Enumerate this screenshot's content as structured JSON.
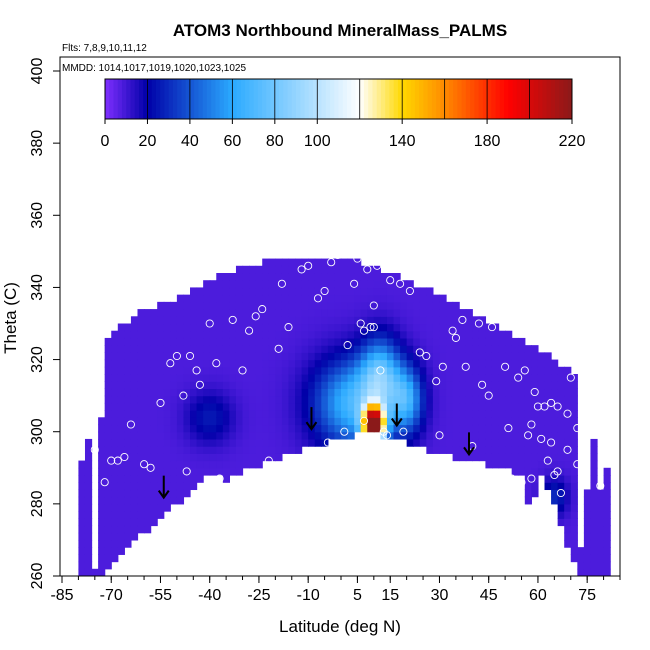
{
  "chart_data": {
    "type": "heatmap",
    "title": "ATOM3 Northbound MineralMass_PALMS",
    "subtitle_flights": "Flts: 7,8,9,10,11,12",
    "subtitle_dates": "MMDD: 1014,1017,1019,1020,1023,1025",
    "xlabel": "Latitude (deg N)",
    "ylabel": "Theta (C)",
    "xlim": [
      -85,
      85
    ],
    "ylim": [
      260,
      400
    ],
    "x_ticks": [
      -85,
      -70,
      -55,
      -40,
      -25,
      -10,
      5,
      15,
      30,
      45,
      60,
      75
    ],
    "y_ticks": [
      260,
      280,
      300,
      320,
      340,
      360,
      380,
      400
    ],
    "colorbar": {
      "range": [
        0,
        220
      ],
      "ticks": [
        0,
        20,
        40,
        60,
        80,
        100,
        140,
        180,
        220
      ],
      "colors": {
        "low": "#7f2fff",
        "mid_low": "#0000a8",
        "mid": "#2aaaff",
        "white": "#ffffff",
        "yellow": "#ffd800",
        "orange": "#ff8a00",
        "red": "#ff0000",
        "high": "#8b1a1a"
      }
    },
    "background_value": 8,
    "envelope": {
      "lower": [
        [
          -72,
          261
        ],
        [
          -65,
          268
        ],
        [
          -55,
          276
        ],
        [
          -46,
          283
        ],
        [
          -40,
          288
        ],
        [
          -35,
          287
        ],
        [
          -25,
          291
        ],
        [
          -15,
          294
        ],
        [
          -5,
          297
        ],
        [
          3,
          299
        ],
        [
          8,
          300
        ],
        [
          18,
          298
        ],
        [
          28,
          294
        ],
        [
          40,
          292
        ],
        [
          50,
          290
        ],
        [
          55,
          288
        ],
        [
          57,
          280
        ],
        [
          58,
          277
        ],
        [
          60,
          289
        ],
        [
          65,
          280
        ],
        [
          68,
          270
        ],
        [
          72,
          261
        ]
      ],
      "upper": [
        [
          -75,
          261
        ],
        [
          -78,
          284
        ],
        [
          -80,
          300
        ],
        [
          -78,
          315
        ],
        [
          -72,
          325
        ],
        [
          -62,
          333
        ],
        [
          -50,
          337
        ],
        [
          -40,
          342
        ],
        [
          -28,
          346
        ],
        [
          -18,
          348
        ],
        [
          -5,
          348
        ],
        [
          5,
          347
        ],
        [
          15,
          344
        ],
        [
          25,
          340
        ],
        [
          35,
          335
        ],
        [
          45,
          330
        ],
        [
          55,
          325
        ],
        [
          65,
          320
        ],
        [
          72,
          315
        ],
        [
          78,
          305
        ],
        [
          80,
          290
        ],
        [
          78,
          278
        ],
        [
          72,
          261
        ]
      ]
    },
    "enhanced_regions": [
      {
        "center": [
          4,
          308
        ],
        "peak": 60,
        "spread": [
          12,
          12
        ]
      },
      {
        "center": [
          10,
          302
        ],
        "peak": 215,
        "spread": [
          3.2,
          5
        ]
      },
      {
        "center": [
          12,
          316
        ],
        "peak": 55,
        "spread": [
          6,
          10
        ]
      },
      {
        "center": [
          20,
          309
        ],
        "peak": 50,
        "spread": [
          5,
          9
        ]
      },
      {
        "center": [
          -40,
          304
        ],
        "peak": 18,
        "spread": [
          7,
          7
        ]
      },
      {
        "center": [
          65,
          282
        ],
        "peak": 22,
        "spread": [
          4,
          5
        ]
      }
    ],
    "flight_points": [
      [
        -74,
        311
      ],
      [
        -75,
        295
      ],
      [
        -72,
        286
      ],
      [
        -70,
        292
      ],
      [
        -68,
        292
      ],
      [
        -66,
        293
      ],
      [
        -64,
        302
      ],
      [
        -60,
        291
      ],
      [
        -58,
        290
      ],
      [
        -55,
        308
      ],
      [
        -52,
        319
      ],
      [
        -50,
        321
      ],
      [
        -48,
        310
      ],
      [
        -47,
        289
      ],
      [
        -46,
        321
      ],
      [
        -44,
        317
      ],
      [
        -43,
        313
      ],
      [
        -40,
        330
      ],
      [
        -38,
        319
      ],
      [
        -37,
        287
      ],
      [
        -33,
        331
      ],
      [
        -30,
        317
      ],
      [
        -28,
        328
      ],
      [
        -26,
        332
      ],
      [
        -24,
        334
      ],
      [
        -22,
        292
      ],
      [
        -19,
        323
      ],
      [
        -18,
        341
      ],
      [
        -16,
        329
      ],
      [
        -12,
        345
      ],
      [
        -10,
        346
      ],
      [
        -7,
        337
      ],
      [
        -5,
        339
      ],
      [
        -4,
        297
      ],
      [
        -3,
        347
      ],
      [
        -1,
        349
      ],
      [
        1,
        300
      ],
      [
        2,
        324
      ],
      [
        4,
        341
      ],
      [
        5,
        348
      ],
      [
        6,
        330
      ],
      [
        7,
        303
      ],
      [
        7,
        328
      ],
      [
        8,
        345
      ],
      [
        9,
        329
      ],
      [
        10,
        329
      ],
      [
        10,
        335
      ],
      [
        11,
        346
      ],
      [
        12,
        317
      ],
      [
        13,
        300
      ],
      [
        14,
        299
      ],
      [
        15,
        342
      ],
      [
        18,
        341
      ],
      [
        19,
        300
      ],
      [
        21,
        339
      ],
      [
        23,
        343
      ],
      [
        24,
        322
      ],
      [
        26,
        321
      ],
      [
        27,
        342
      ],
      [
        29,
        314
      ],
      [
        30,
        299
      ],
      [
        31,
        318
      ],
      [
        34,
        328
      ],
      [
        35,
        326
      ],
      [
        37,
        331
      ],
      [
        38,
        318
      ],
      [
        40,
        296
      ],
      [
        42,
        330
      ],
      [
        43,
        313
      ],
      [
        45,
        310
      ],
      [
        46,
        329
      ],
      [
        48,
        334
      ],
      [
        50,
        318
      ],
      [
        51,
        301
      ],
      [
        52,
        287
      ],
      [
        54,
        315
      ],
      [
        55,
        286
      ],
      [
        56,
        317
      ],
      [
        57,
        299
      ],
      [
        58,
        302
      ],
      [
        58,
        287
      ],
      [
        59,
        311
      ],
      [
        60,
        307
      ],
      [
        61,
        298
      ],
      [
        62,
        307
      ],
      [
        63,
        292
      ],
      [
        64,
        308
      ],
      [
        64,
        297
      ],
      [
        65,
        288
      ],
      [
        66,
        289
      ],
      [
        66,
        307
      ],
      [
        67,
        283
      ],
      [
        69,
        305
      ],
      [
        69,
        295
      ],
      [
        70,
        315
      ],
      [
        72,
        301
      ],
      [
        72,
        291
      ],
      [
        74,
        293
      ],
      [
        76,
        301
      ],
      [
        79,
        285
      ]
    ],
    "arrows": [
      [
        -54,
        282
      ],
      [
        -9,
        301
      ],
      [
        17,
        302
      ],
      [
        39,
        294
      ]
    ]
  }
}
